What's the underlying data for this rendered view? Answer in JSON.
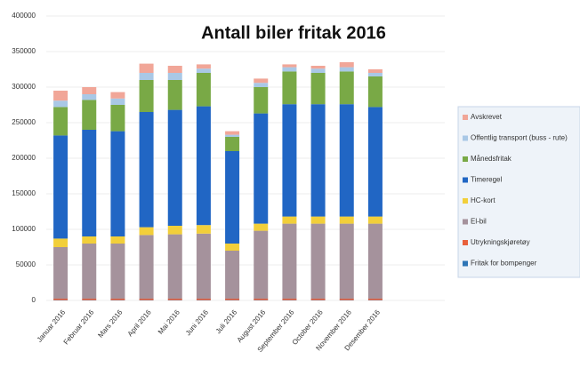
{
  "chart_data": {
    "type": "stacked_bar",
    "title": "Antall biler fritak  2016",
    "categories": [
      "Januar 2016",
      "Februar 2016",
      "Mars 2016",
      "April 2016",
      "Mai 2016",
      "Juni 2016",
      "Juli 2016",
      "August 2016",
      "September 2016",
      "October 2016",
      "November 2016",
      "Desember 2016"
    ],
    "series": [
      {
        "name": "Fritak for bompenger",
        "color": "#2e75b6",
        "values": [
          500,
          500,
          500,
          500,
          500,
          500,
          500,
          500,
          500,
          500,
          500,
          500
        ]
      },
      {
        "name": "Utrykningskjøretøy",
        "color": "#e8603c",
        "values": [
          2000,
          2000,
          2000,
          2000,
          2000,
          2000,
          2000,
          2000,
          2000,
          2000,
          2000,
          2000
        ]
      },
      {
        "name": "El-bil",
        "color": "#a5929c",
        "values": [
          72500,
          77500,
          77500,
          89500,
          90500,
          91500,
          67500,
          95500,
          105500,
          105500,
          105500,
          105500
        ]
      },
      {
        "name": "HC-kort",
        "color": "#f2cf3a",
        "values": [
          12000,
          10000,
          10000,
          11000,
          12000,
          12000,
          10000,
          10000,
          10000,
          10000,
          10000,
          10000
        ]
      },
      {
        "name": "Timeregel",
        "color": "#2166c4",
        "values": [
          145000,
          150000,
          148000,
          162000,
          163000,
          167000,
          130000,
          155000,
          158000,
          158000,
          158000,
          154000
        ]
      },
      {
        "name": "Månedsfritak",
        "color": "#79a946",
        "values": [
          40000,
          42000,
          37000,
          45000,
          42000,
          47000,
          20000,
          37000,
          46000,
          44000,
          46000,
          43000
        ]
      },
      {
        "name": "Offentlig transport (buss - rute)",
        "color": "#a9c8e6",
        "values": [
          9000,
          8000,
          9000,
          10000,
          10000,
          6000,
          3000,
          6000,
          6000,
          6000,
          6000,
          5000
        ]
      },
      {
        "name": "Avskrevet",
        "color": "#f1a698",
        "values": [
          14000,
          10000,
          9000,
          13000,
          10000,
          6000,
          5000,
          6000,
          4000,
          4000,
          7000,
          5000
        ]
      }
    ],
    "ylim": [
      0,
      400000
    ],
    "yticks": [
      0,
      50000,
      100000,
      150000,
      200000,
      250000,
      300000,
      350000,
      400000
    ],
    "grid": true,
    "legend": "right"
  }
}
